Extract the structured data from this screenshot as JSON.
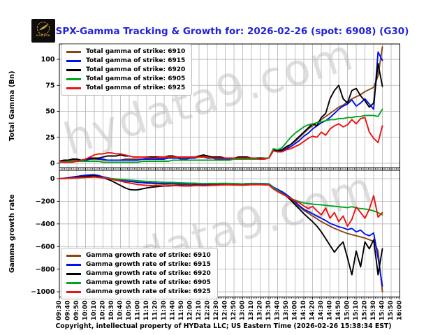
{
  "footer": "Copyright, intellectual property of HYData LLC; US Eastern Time (2026-02-26 15:38:34 EST)",
  "logo": {
    "brand": "HYDATA"
  },
  "watermark": "hydata9.com",
  "chart_data": {
    "type": "line",
    "title": "SPX-Gamma Tracking & Growth for: 2026-02-26 (spot: 6908) (G30)",
    "title_color": "#2222dd",
    "grid": true,
    "grid_color": "#b3b3b3",
    "x_range": [
      "09:30",
      "16:00"
    ],
    "x_tick_labels": [
      "09:30",
      "09:40",
      "09:50",
      "10:00",
      "10:10",
      "10:20",
      "10:30",
      "10:40",
      "10:50",
      "11:00",
      "11:10",
      "11:20",
      "11:30",
      "11:40",
      "11:50",
      "12:00",
      "12:10",
      "12:20",
      "12:30",
      "12:40",
      "12:50",
      "13:00",
      "13:10",
      "13:20",
      "13:30",
      "13:40",
      "13:50",
      "14:00",
      "14:10",
      "14:20",
      "14:30",
      "14:40",
      "14:50",
      "15:00",
      "15:10",
      "15:20",
      "15:30",
      "15:40",
      "15:50",
      "16:00"
    ],
    "x_times": [
      "09:30",
      "09:35",
      "09:40",
      "09:45",
      "09:50",
      "09:55",
      "10:00",
      "10:05",
      "10:10",
      "10:15",
      "10:20",
      "10:25",
      "10:30",
      "10:35",
      "10:40",
      "10:45",
      "10:50",
      "10:55",
      "11:00",
      "11:05",
      "11:10",
      "11:15",
      "11:20",
      "11:25",
      "11:30",
      "11:35",
      "11:40",
      "11:45",
      "11:50",
      "11:55",
      "12:00",
      "12:05",
      "12:10",
      "12:15",
      "12:20",
      "12:25",
      "12:30",
      "12:35",
      "12:40",
      "12:45",
      "12:50",
      "12:55",
      "13:00",
      "13:05",
      "13:10",
      "13:15",
      "13:20",
      "13:25",
      "13:30",
      "13:35",
      "13:40",
      "13:45",
      "13:50",
      "13:55",
      "14:00",
      "14:05",
      "14:10",
      "14:15",
      "14:20",
      "14:25",
      "14:30",
      "14:35",
      "14:40",
      "14:45",
      "14:50",
      "14:55",
      "15:00",
      "15:05",
      "15:10",
      "15:15",
      "15:20",
      "15:25",
      "15:30",
      "15:35",
      "15:40"
    ],
    "panels": [
      {
        "ylabel": "Total Gamma (Bn)",
        "ylim": [
          -4.4,
          114.8
        ],
        "yticks": [
          0,
          25,
          50,
          75,
          100
        ],
        "legend_position": "upper left",
        "series": [
          {
            "name": "total-gamma-6910",
            "label": "Total gamma of strike: 6910",
            "color": "#8b4513",
            "values": [
              2,
              2,
              2,
              3,
              3,
              3,
              3,
              4,
              4,
              4,
              3,
              3,
              3,
              3,
              3,
              4,
              4,
              4,
              4,
              4,
              5,
              5,
              5,
              5,
              5,
              6,
              6,
              5,
              5,
              5,
              6,
              6,
              7,
              7,
              6,
              5,
              5,
              5,
              4,
              4,
              5,
              5,
              6,
              5,
              5,
              5,
              5,
              5,
              5,
              13,
              12,
              13,
              15,
              18,
              21,
              25,
              29,
              33,
              36,
              39,
              42,
              45,
              48,
              51,
              54,
              56,
              59,
              62,
              64,
              66,
              69,
              71,
              73,
              84,
              112
            ]
          },
          {
            "name": "total-gamma-6915",
            "label": "Total gamma of strike: 6915",
            "color": "#0011ee",
            "values": [
              2,
              3,
              3,
              4,
              4,
              3,
              3,
              4,
              5,
              4,
              4,
              3,
              3,
              3,
              3,
              3,
              3,
              3,
              3,
              4,
              4,
              4,
              4,
              4,
              4,
              5,
              5,
              5,
              4,
              4,
              5,
              5,
              6,
              6,
              5,
              5,
              4,
              4,
              4,
              4,
              4,
              5,
              5,
              5,
              4,
              4,
              4,
              5,
              5,
              12,
              11,
              12,
              14,
              16,
              19,
              22,
              26,
              29,
              33,
              36,
              39,
              41,
              44,
              48,
              52,
              55,
              57,
              61,
              55,
              58,
              62,
              57,
              52,
              107,
              99
            ]
          },
          {
            "name": "total-gamma-6920",
            "label": "Total gamma of strike: 6920",
            "color": "#000000",
            "values": [
              2,
              3,
              3,
              4,
              4,
              3,
              4,
              5,
              5,
              5,
              6,
              7,
              7,
              7,
              8,
              7,
              7,
              6,
              6,
              6,
              6,
              6,
              6,
              6,
              6,
              7,
              7,
              6,
              6,
              6,
              6,
              6,
              7,
              8,
              7,
              6,
              6,
              6,
              5,
              5,
              5,
              6,
              6,
              6,
              5,
              5,
              5,
              5,
              5,
              13,
              12,
              13,
              16,
              18,
              22,
              26,
              30,
              34,
              38,
              36,
              44,
              48,
              62,
              70,
              75,
              62,
              58,
              70,
              72,
              65,
              60,
              54,
              58,
              96,
              74
            ]
          },
          {
            "name": "total-gamma-6905",
            "label": "Total gamma of strike: 6905",
            "color": "#00a520",
            "values": [
              1,
              1,
              2,
              2,
              2,
              2,
              2,
              2,
              2,
              2,
              1,
              1,
              1,
              1,
              1,
              1,
              1,
              1,
              1,
              2,
              2,
              2,
              2,
              2,
              2,
              2,
              3,
              3,
              3,
              3,
              3,
              3,
              3,
              3,
              3,
              3,
              3,
              3,
              3,
              3,
              4,
              4,
              4,
              4,
              4,
              4,
              4,
              5,
              5,
              14,
              13,
              15,
              20,
              25,
              29,
              32,
              35,
              37,
              38,
              39,
              40,
              41,
              42,
              42,
              43,
              43,
              44,
              44,
              45,
              45,
              46,
              46,
              46,
              45,
              52
            ]
          },
          {
            "name": "total-gamma-6925",
            "label": "Total gamma of strike: 6925",
            "color": "#ee1111",
            "values": [
              2,
              1,
              1,
              1,
              2,
              3,
              4,
              6,
              8,
              9,
              9,
              10,
              10,
              9,
              9,
              8,
              7,
              6,
              6,
              6,
              6,
              5,
              5,
              6,
              6,
              6,
              6,
              6,
              6,
              6,
              6,
              6,
              6,
              6,
              6,
              5,
              5,
              5,
              5,
              5,
              5,
              5,
              5,
              5,
              5,
              5,
              4,
              4,
              5,
              12,
              11,
              11,
              13,
              14,
              16,
              18,
              21,
              24,
              26,
              25,
              30,
              27,
              33,
              36,
              38,
              35,
              37,
              42,
              38,
              43,
              44,
              30,
              24,
              20,
              36
            ]
          }
        ]
      },
      {
        "ylabel": "Gamma growth rate",
        "ylim": [
          -1046,
          74
        ],
        "yticks": [
          0,
          -200,
          -400,
          -600,
          -800,
          -1000
        ],
        "legend_position": "lower left",
        "series": [
          {
            "name": "gamma-growth-6910",
            "label": "Gamma growth rate of strike: 6910",
            "color": "#8b4513",
            "values": [
              0,
              2,
              4,
              6,
              8,
              10,
              13,
              16,
              18,
              14,
              8,
              3,
              -2,
              -7,
              -12,
              -17,
              -22,
              -27,
              -32,
              -36,
              -40,
              -42,
              -45,
              -47,
              -50,
              -48,
              -46,
              -50,
              -52,
              -53,
              -52,
              -50,
              -52,
              -54,
              -52,
              -50,
              -48,
              -47,
              -46,
              -46,
              -48,
              -49,
              -50,
              -48,
              -46,
              -46,
              -47,
              -48,
              -50,
              -85,
              -110,
              -130,
              -150,
              -180,
              -215,
              -250,
              -280,
              -305,
              -330,
              -355,
              -380,
              -400,
              -420,
              -440,
              -455,
              -470,
              -485,
              -495,
              -505,
              -515,
              -525,
              -540,
              -555,
              -640,
              -1000
            ]
          },
          {
            "name": "gamma-growth-6915",
            "label": "Gamma growth rate of strike: 6915",
            "color": "#0011ee",
            "values": [
              0,
              3,
              8,
              14,
              20,
              26,
              30,
              33,
              35,
              28,
              16,
              8,
              0,
              -6,
              -12,
              -18,
              -24,
              -28,
              -32,
              -34,
              -36,
              -38,
              -40,
              -42,
              -44,
              -43,
              -42,
              -44,
              -46,
              -47,
              -46,
              -44,
              -46,
              -48,
              -46,
              -44,
              -43,
              -42,
              -42,
              -42,
              -44,
              -45,
              -46,
              -44,
              -42,
              -42,
              -43,
              -44,
              -46,
              -75,
              -95,
              -115,
              -140,
              -170,
              -205,
              -240,
              -270,
              -290,
              -310,
              -330,
              -350,
              -370,
              -395,
              -410,
              -425,
              -435,
              -450,
              -440,
              -470,
              -455,
              -490,
              -505,
              -480,
              -700,
              -950
            ]
          },
          {
            "name": "gamma-growth-6920",
            "label": "Gamma growth rate of strike: 6920",
            "color": "#000000",
            "values": [
              0,
              2,
              5,
              8,
              12,
              16,
              20,
              24,
              27,
              18,
              8,
              -5,
              -20,
              -40,
              -60,
              -80,
              -95,
              -100,
              -98,
              -90,
              -82,
              -76,
              -72,
              -68,
              -66,
              -64,
              -62,
              -60,
              -62,
              -64,
              -62,
              -58,
              -60,
              -62,
              -60,
              -58,
              -56,
              -54,
              -52,
              -52,
              -54,
              -55,
              -56,
              -54,
              -52,
              -50,
              -50,
              -50,
              -52,
              -88,
              -108,
              -128,
              -155,
              -190,
              -230,
              -270,
              -310,
              -345,
              -380,
              -420,
              -470,
              -530,
              -590,
              -650,
              -600,
              -560,
              -700,
              -850,
              -640,
              -780,
              -560,
              -620,
              -540,
              -850,
              -620
            ]
          },
          {
            "name": "gamma-growth-6905",
            "label": "Gamma growth rate of strike: 6905",
            "color": "#00a520",
            "values": [
              0,
              1,
              3,
              5,
              7,
              9,
              11,
              13,
              15,
              12,
              8,
              4,
              0,
              -3,
              -6,
              -9,
              -12,
              -15,
              -18,
              -21,
              -24,
              -26,
              -28,
              -30,
              -32,
              -33,
              -34,
              -36,
              -38,
              -39,
              -40,
              -40,
              -42,
              -43,
              -42,
              -42,
              -42,
              -42,
              -42,
              -43,
              -44,
              -45,
              -46,
              -45,
              -44,
              -44,
              -45,
              -46,
              -48,
              -80,
              -105,
              -130,
              -155,
              -175,
              -190,
              -205,
              -215,
              -220,
              -225,
              -228,
              -232,
              -236,
              -240,
              -244,
              -248,
              -252,
              -256,
              -248,
              -260,
              -264,
              -268,
              -275,
              -285,
              -300,
              -320
            ]
          },
          {
            "name": "gamma-growth-6925",
            "label": "Gamma growth rate of strike: 6925",
            "color": "#ee1111",
            "values": [
              0,
              1,
              3,
              5,
              7,
              9,
              11,
              13,
              15,
              11,
              6,
              1,
              -6,
              -14,
              -22,
              -30,
              -38,
              -45,
              -52,
              -56,
              -60,
              -62,
              -60,
              -62,
              -64,
              -62,
              -60,
              -62,
              -64,
              -65,
              -64,
              -62,
              -62,
              -63,
              -62,
              -60,
              -58,
              -56,
              -55,
              -55,
              -56,
              -57,
              -58,
              -56,
              -54,
              -53,
              -54,
              -55,
              -56,
              -90,
              -115,
              -135,
              -155,
              -175,
              -195,
              -215,
              -240,
              -265,
              -245,
              -285,
              -320,
              -260,
              -350,
              -300,
              -380,
              -330,
              -420,
              -360,
              -250,
              -300,
              -350,
              -270,
              -150,
              -340,
              -300
            ]
          }
        ]
      }
    ]
  }
}
